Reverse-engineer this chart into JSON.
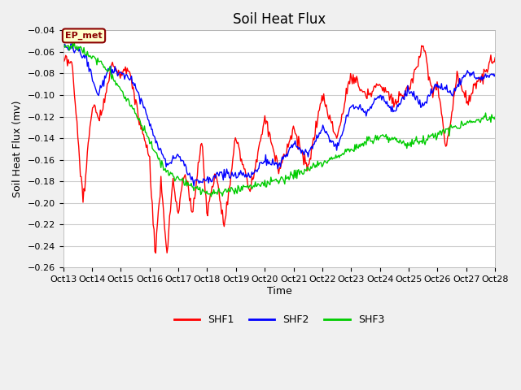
{
  "title": "Soil Heat Flux",
  "xlabel": "Time",
  "ylabel": "Soil Heat Flux (mv)",
  "ylim": [
    -0.26,
    -0.04
  ],
  "yticks": [
    -0.26,
    -0.24,
    -0.22,
    -0.2,
    -0.18,
    -0.16,
    -0.14,
    -0.12,
    -0.1,
    -0.08,
    -0.06,
    -0.04
  ],
  "xtick_labels": [
    "Oct 13",
    "Oct 14",
    "Oct 15",
    "Oct 16",
    "Oct 17",
    "Oct 18",
    "Oct 19",
    "Oct 20",
    "Oct 21",
    "Oct 22",
    "Oct 23",
    "Oct 24",
    "Oct 25",
    "Oct 26",
    "Oct 27",
    "Oct 28"
  ],
  "fig_facecolor": "#f0f0f0",
  "plot_facecolor": "#ffffff",
  "grid_color": "#cccccc",
  "annotation_text": "EP_met",
  "annotation_bg": "#ffffcc",
  "annotation_border": "#8b0000",
  "legend_colors": [
    "#ff0000",
    "#0000ff",
    "#00cc00"
  ],
  "legend_labels": [
    "SHF1",
    "SHF2",
    "SHF3"
  ],
  "line_width": 1.0,
  "title_fontsize": 12,
  "axis_label_fontsize": 9,
  "tick_fontsize": 8
}
